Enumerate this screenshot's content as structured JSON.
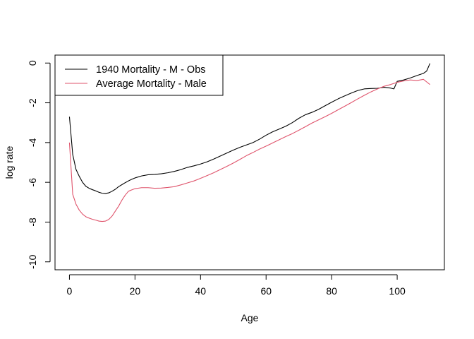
{
  "chart_data": {
    "type": "line",
    "title": "",
    "xlabel": "Age",
    "ylabel": "log rate",
    "xlim": [
      -4.4,
      114.4
    ],
    "ylim": [
      -10.4,
      0.4
    ],
    "xticks": [
      0,
      20,
      40,
      60,
      80,
      100
    ],
    "yticks": [
      0,
      -2,
      -4,
      -6,
      -8,
      -10
    ],
    "grid": false,
    "legend_position": "top-left",
    "series": [
      {
        "name": "1940 Mortality - M - Obs",
        "color": "#000000",
        "x": [
          0,
          1,
          2,
          3,
          4,
          5,
          6,
          7,
          8,
          9,
          10,
          11,
          12,
          13,
          14,
          15,
          16,
          17,
          18,
          19,
          20,
          22,
          24,
          26,
          28,
          30,
          32,
          34,
          36,
          38,
          40,
          42,
          44,
          46,
          48,
          50,
          52,
          54,
          56,
          58,
          60,
          62,
          64,
          66,
          68,
          70,
          72,
          74,
          76,
          78,
          80,
          82,
          84,
          86,
          88,
          90,
          92,
          94,
          96,
          98,
          99,
          100,
          102,
          104,
          106,
          108,
          109,
          110
        ],
        "values": [
          -2.7,
          -4.6,
          -5.35,
          -5.7,
          -6.0,
          -6.2,
          -6.3,
          -6.37,
          -6.43,
          -6.5,
          -6.55,
          -6.56,
          -6.53,
          -6.45,
          -6.35,
          -6.22,
          -6.12,
          -6.02,
          -5.93,
          -5.85,
          -5.78,
          -5.68,
          -5.62,
          -5.6,
          -5.57,
          -5.52,
          -5.45,
          -5.36,
          -5.25,
          -5.17,
          -5.08,
          -4.97,
          -4.83,
          -4.68,
          -4.53,
          -4.38,
          -4.24,
          -4.12,
          -4.0,
          -3.83,
          -3.63,
          -3.46,
          -3.32,
          -3.18,
          -3.0,
          -2.78,
          -2.6,
          -2.48,
          -2.33,
          -2.15,
          -1.97,
          -1.8,
          -1.65,
          -1.51,
          -1.38,
          -1.3,
          -1.28,
          -1.27,
          -1.22,
          -1.26,
          -1.3,
          -0.92,
          -0.85,
          -0.75,
          -0.63,
          -0.52,
          -0.4,
          -0.02
        ]
      },
      {
        "name": "Average Mortality - Male",
        "color": "#df536b",
        "x": [
          0,
          1,
          2,
          3,
          4,
          5,
          6,
          7,
          8,
          9,
          10,
          11,
          12,
          13,
          14,
          15,
          16,
          17,
          18,
          19,
          20,
          22,
          24,
          26,
          28,
          30,
          32,
          34,
          36,
          38,
          40,
          42,
          44,
          46,
          48,
          50,
          52,
          54,
          56,
          58,
          60,
          62,
          64,
          66,
          68,
          70,
          72,
          74,
          76,
          78,
          80,
          82,
          84,
          86,
          88,
          90,
          92,
          94,
          96,
          98,
          100,
          102,
          104,
          106,
          108,
          109,
          110
        ],
        "values": [
          -4.0,
          -6.6,
          -7.1,
          -7.4,
          -7.6,
          -7.73,
          -7.8,
          -7.86,
          -7.9,
          -7.95,
          -7.97,
          -7.95,
          -7.87,
          -7.7,
          -7.45,
          -7.2,
          -6.9,
          -6.65,
          -6.45,
          -6.38,
          -6.32,
          -6.27,
          -6.27,
          -6.3,
          -6.29,
          -6.26,
          -6.22,
          -6.13,
          -6.03,
          -5.93,
          -5.8,
          -5.66,
          -5.52,
          -5.36,
          -5.2,
          -5.03,
          -4.85,
          -4.66,
          -4.5,
          -4.33,
          -4.18,
          -4.02,
          -3.86,
          -3.7,
          -3.55,
          -3.38,
          -3.2,
          -3.02,
          -2.86,
          -2.7,
          -2.53,
          -2.35,
          -2.17,
          -1.99,
          -1.8,
          -1.62,
          -1.45,
          -1.3,
          -1.17,
          -1.08,
          -0.97,
          -0.9,
          -0.85,
          -0.88,
          -0.82,
          -0.95,
          -1.08
        ]
      }
    ]
  }
}
